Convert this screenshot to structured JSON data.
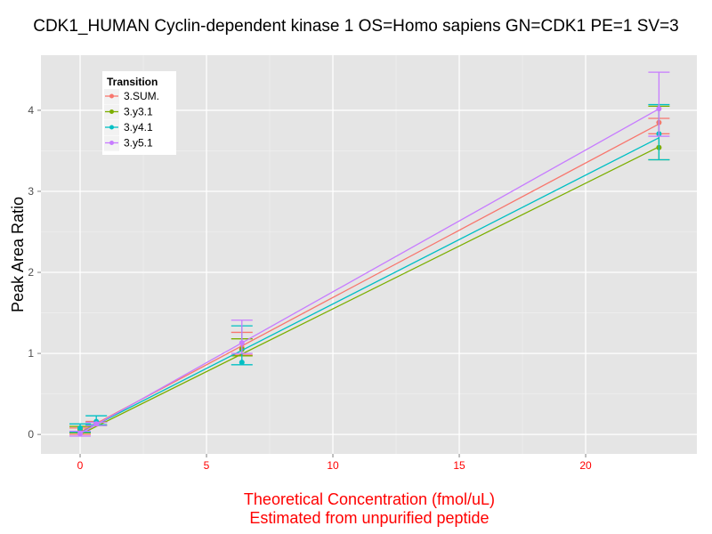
{
  "chart_data": {
    "type": "line",
    "title": "CDK1_HUMAN Cyclin-dependent kinase 1 OS=Homo sapiens GN=CDK1 PE=1 SV=3",
    "xlabel": "Theoretical Concentration (fmol/uL)",
    "xlabel2": "Estimated from unpurified peptide",
    "ylabel": "Peak Area Ratio",
    "xlim": [
      -1.55,
      24.4
    ],
    "ylim": [
      -0.24,
      4.68
    ],
    "xticks": [
      0,
      5,
      10,
      15,
      20
    ],
    "yticks": [
      0,
      1,
      2,
      3,
      4
    ],
    "grid": true,
    "legend": {
      "title": "Transition",
      "position": "top-left"
    },
    "series": [
      {
        "name": "3.SUM.",
        "color": "#F8766D",
        "fit": [
          0.03,
          0.166
        ],
        "points": [
          {
            "x": 0,
            "y": 0.03,
            "lo": 0.0,
            "hi": 0.08
          },
          {
            "x": 0.64,
            "y": 0.14,
            "lo": 0.12,
            "hi": 0.16
          },
          {
            "x": 6.4,
            "y": 1.07,
            "lo": 0.98,
            "hi": 1.26
          },
          {
            "x": 22.9,
            "y": 3.85,
            "lo": 3.71,
            "hi": 3.9
          }
        ]
      },
      {
        "name": "3.y3.1",
        "color": "#7CAE00",
        "fit": [
          0.0,
          0.155
        ],
        "points": [
          {
            "x": 0,
            "y": 0.06,
            "lo": 0.02,
            "hi": 0.1
          },
          {
            "x": 0.64,
            "y": 0.13,
            "lo": 0.11,
            "hi": 0.15
          },
          {
            "x": 6.4,
            "y": 1.05,
            "lo": 0.97,
            "hi": 1.18
          },
          {
            "x": 22.9,
            "y": 3.54,
            "lo": 3.39,
            "hi": 4.05
          }
        ]
      },
      {
        "name": "3.y4.1",
        "color": "#00BFC4",
        "fit": [
          0.02,
          0.159
        ],
        "points": [
          {
            "x": 0,
            "y": 0.08,
            "lo": 0.03,
            "hi": 0.13
          },
          {
            "x": 0.64,
            "y": 0.16,
            "lo": 0.12,
            "hi": 0.23
          },
          {
            "x": 6.4,
            "y": 0.89,
            "lo": 0.86,
            "hi": 1.34
          },
          {
            "x": 22.9,
            "y": 3.71,
            "lo": 3.39,
            "hi": 4.07
          }
        ]
      },
      {
        "name": "3.y5.1",
        "color": "#C77CFF",
        "fit": [
          0.01,
          0.175
        ],
        "points": [
          {
            "x": 0,
            "y": 0.01,
            "lo": -0.02,
            "hi": 0.04
          },
          {
            "x": 0.64,
            "y": 0.13,
            "lo": 0.11,
            "hi": 0.15
          },
          {
            "x": 6.4,
            "y": 1.13,
            "lo": 1.0,
            "hi": 1.41
          },
          {
            "x": 22.9,
            "y": 4.02,
            "lo": 3.68,
            "hi": 4.47
          }
        ]
      }
    ]
  }
}
